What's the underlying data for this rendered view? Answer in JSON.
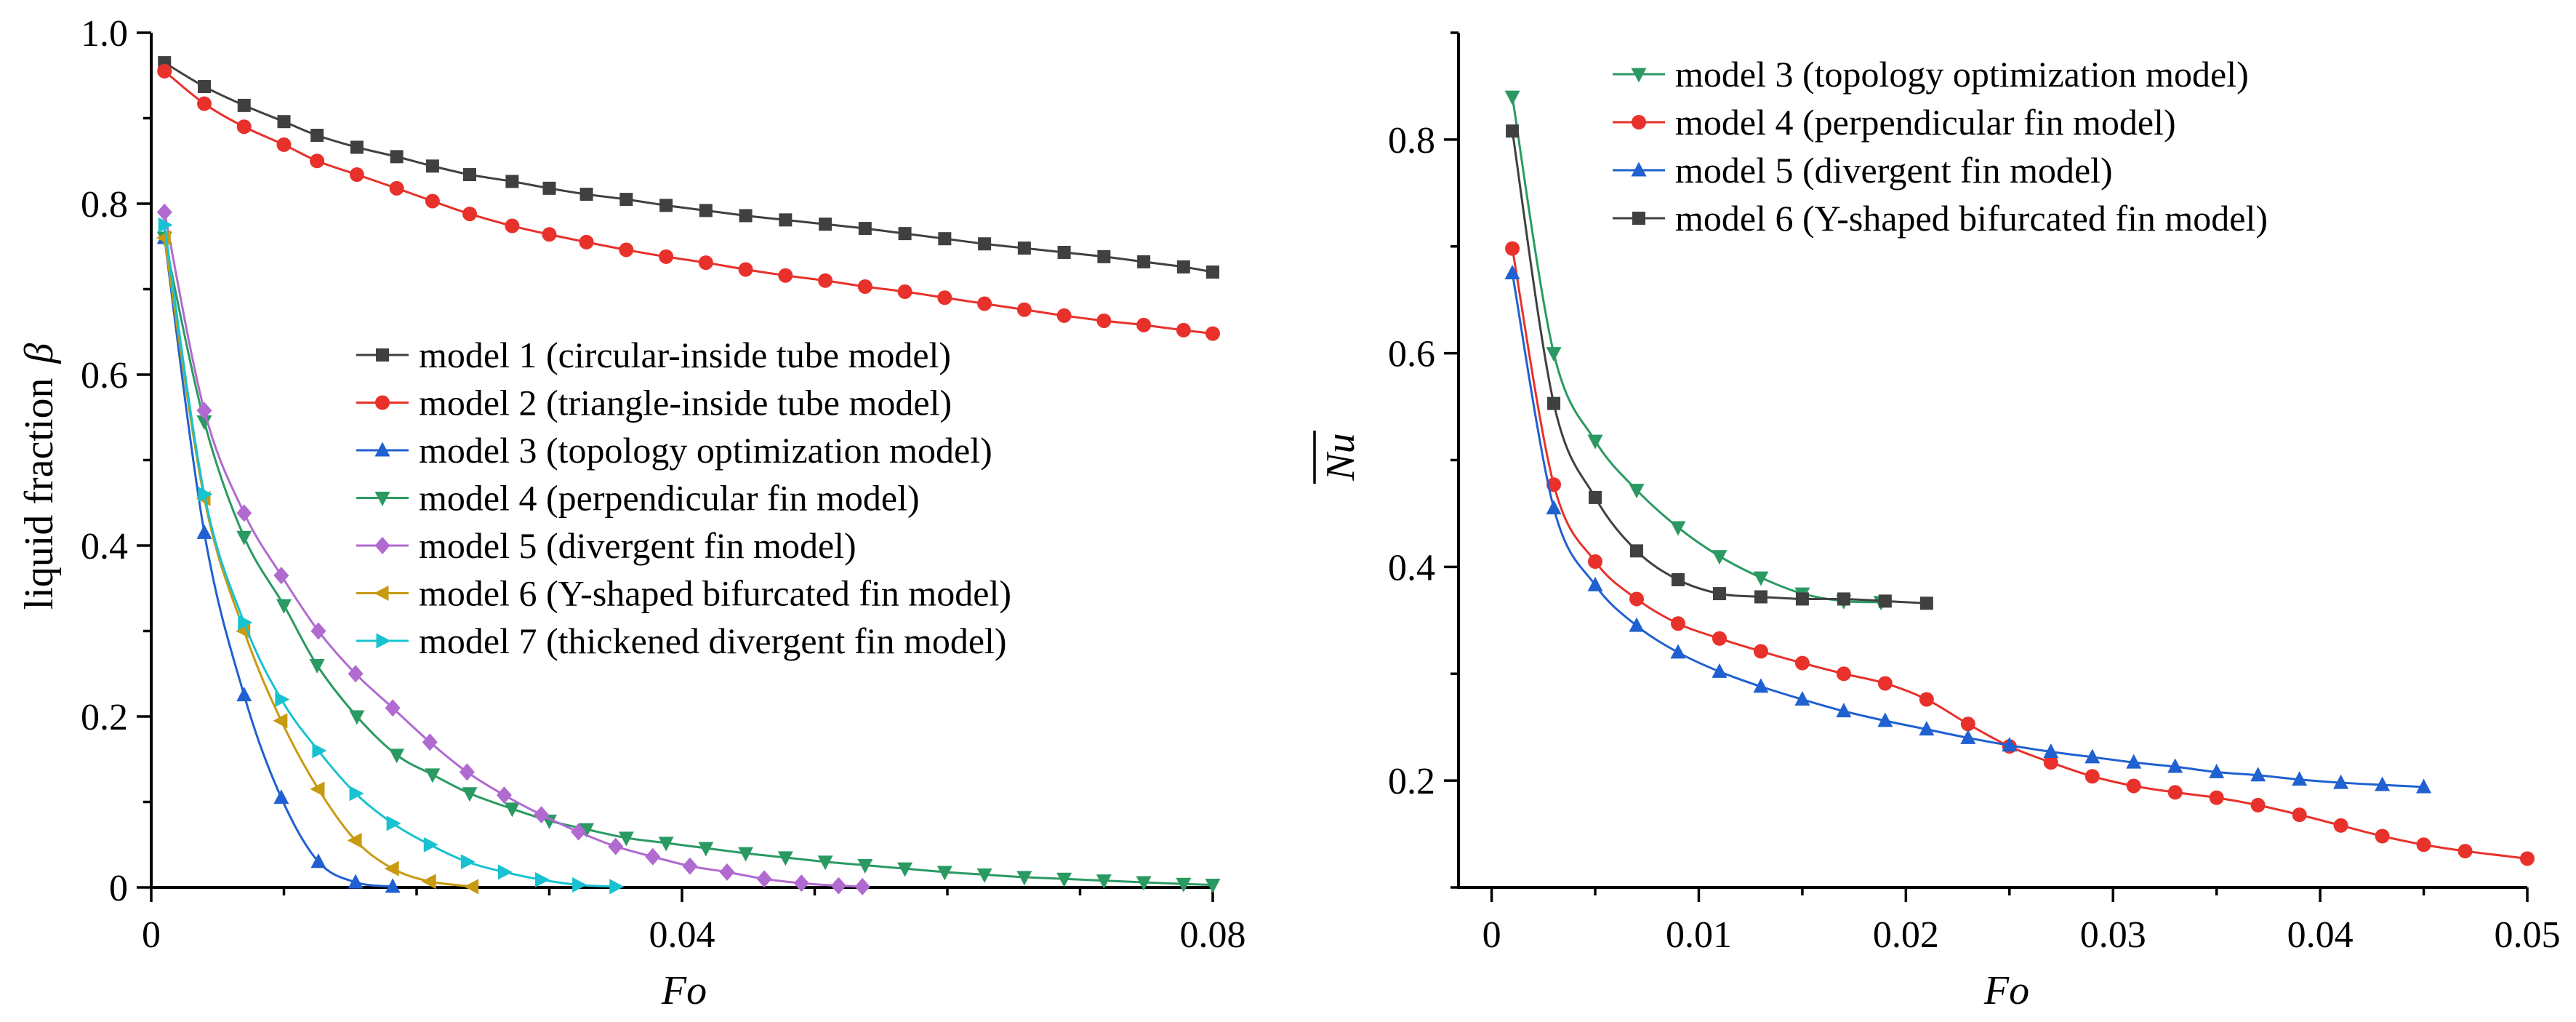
{
  "chart_data": [
    {
      "type": "line",
      "title": "",
      "xlabel": "Fo",
      "ylabel": "liquid fraction",
      "ylabel_symbol": "β",
      "xlim": [
        0,
        0.08
      ],
      "ylim": [
        0,
        1.0
      ],
      "xticks": [
        0,
        0.04,
        0.08
      ],
      "xtick_labels": [
        "0",
        "0.04",
        "0.08"
      ],
      "yticks": [
        0,
        0.2,
        0.4,
        0.6,
        0.8,
        1.0
      ],
      "ytick_labels": [
        "0",
        "0.2",
        "0.4",
        "0.6",
        "0.8",
        "1.0"
      ],
      "grid": false,
      "legend_position": "center-right",
      "series": [
        {
          "name": "model 1 (circular-inside tube model)",
          "color": "#404040",
          "marker": "square",
          "x": [
            0.001,
            0.004,
            0.007,
            0.01,
            0.0125,
            0.0155,
            0.0185,
            0.0212,
            0.024,
            0.0272,
            0.03,
            0.0328,
            0.0358,
            0.0388,
            0.0418,
            0.0448,
            0.0478,
            0.0508,
            0.0538,
            0.0568,
            0.0598,
            0.0628,
            0.0658,
            0.0688,
            0.0718,
            0.0748,
            0.0778,
            0.08
          ],
          "y": [
            0.965,
            0.937,
            0.915,
            0.896,
            0.88,
            0.866,
            0.855,
            0.844,
            0.834,
            0.826,
            0.818,
            0.811,
            0.805,
            0.798,
            0.792,
            0.786,
            0.781,
            0.776,
            0.771,
            0.765,
            0.759,
            0.753,
            0.748,
            0.743,
            0.738,
            0.732,
            0.726,
            0.72
          ]
        },
        {
          "name": "model 2 (triangle-inside tube model)",
          "color": "#e8312b",
          "marker": "circle",
          "x": [
            0.001,
            0.004,
            0.007,
            0.01,
            0.0125,
            0.0155,
            0.0185,
            0.0212,
            0.024,
            0.0272,
            0.03,
            0.0328,
            0.0358,
            0.0388,
            0.0418,
            0.0448,
            0.0478,
            0.0508,
            0.0538,
            0.0568,
            0.0598,
            0.0628,
            0.0658,
            0.0688,
            0.0718,
            0.0748,
            0.0778,
            0.08
          ],
          "y": [
            0.955,
            0.917,
            0.89,
            0.869,
            0.85,
            0.834,
            0.818,
            0.803,
            0.788,
            0.774,
            0.764,
            0.755,
            0.746,
            0.738,
            0.731,
            0.723,
            0.716,
            0.71,
            0.703,
            0.697,
            0.69,
            0.683,
            0.676,
            0.669,
            0.663,
            0.658,
            0.652,
            0.648
          ]
        },
        {
          "name": "model 3 (topology optimization model)",
          "color": "#2060d0",
          "marker": "triangle-up",
          "x": [
            0.001,
            0.004,
            0.007,
            0.0098,
            0.0126,
            0.0154,
            0.0182
          ],
          "y": [
            0.76,
            0.415,
            0.225,
            0.105,
            0.03,
            0.006,
            0.001
          ]
        },
        {
          "name": "model 4 (perpendicular fin model)",
          "color": "#2a9a62",
          "marker": "triangle-down",
          "x": [
            0.001,
            0.004,
            0.007,
            0.01,
            0.0125,
            0.0155,
            0.0185,
            0.0212,
            0.024,
            0.0272,
            0.03,
            0.0328,
            0.0358,
            0.0388,
            0.0418,
            0.0448,
            0.0478,
            0.0508,
            0.0538,
            0.0568,
            0.0598,
            0.0628,
            0.0658,
            0.0688,
            0.0718,
            0.0748,
            0.0778,
            0.08
          ],
          "y": [
            0.76,
            0.545,
            0.41,
            0.33,
            0.26,
            0.2,
            0.155,
            0.132,
            0.11,
            0.092,
            0.078,
            0.068,
            0.058,
            0.052,
            0.046,
            0.04,
            0.035,
            0.03,
            0.026,
            0.022,
            0.018,
            0.015,
            0.012,
            0.01,
            0.008,
            0.006,
            0.004,
            0.003
          ]
        },
        {
          "name": "model 5 (divergent fin model)",
          "color": "#b06ad0",
          "marker": "diamond",
          "x": [
            0.001,
            0.004,
            0.007,
            0.0098,
            0.0126,
            0.0154,
            0.0182,
            0.021,
            0.0238,
            0.0266,
            0.0294,
            0.0322,
            0.035,
            0.0378,
            0.0406,
            0.0434,
            0.0462,
            0.049,
            0.0518,
            0.0536
          ],
          "y": [
            0.79,
            0.558,
            0.438,
            0.365,
            0.3,
            0.25,
            0.21,
            0.17,
            0.135,
            0.108,
            0.085,
            0.065,
            0.048,
            0.036,
            0.025,
            0.018,
            0.01,
            0.005,
            0.002,
            0.001
          ]
        },
        {
          "name": "model 6 (Y-shaped bifurcated fin model)",
          "color": "#c89a10",
          "marker": "triangle-left",
          "x": [
            0.001,
            0.004,
            0.007,
            0.0098,
            0.0126,
            0.0154,
            0.0182,
            0.021,
            0.0242
          ],
          "y": [
            0.76,
            0.455,
            0.3,
            0.195,
            0.115,
            0.055,
            0.022,
            0.007,
            0.001
          ]
        },
        {
          "name": "model 7 (thickened divergent fin model)",
          "color": "#18c2d0",
          "marker": "triangle-right",
          "x": [
            0.001,
            0.004,
            0.007,
            0.0098,
            0.0126,
            0.0154,
            0.0182,
            0.021,
            0.0238,
            0.0266,
            0.0294,
            0.0322,
            0.035
          ],
          "y": [
            0.775,
            0.46,
            0.31,
            0.22,
            0.16,
            0.11,
            0.075,
            0.05,
            0.03,
            0.018,
            0.009,
            0.003,
            0.001
          ]
        }
      ]
    },
    {
      "type": "line",
      "title": "",
      "xlabel": "Fo",
      "ylabel": "Nu",
      "xlim": [
        -0.0016,
        0.05
      ],
      "ylim": [
        0.1,
        0.9
      ],
      "xticks": [
        0,
        0.01,
        0.02,
        0.03,
        0.04,
        0.05
      ],
      "xtick_labels": [
        "0",
        "0.01",
        "0.02",
        "0.03",
        "0.04",
        "0.05"
      ],
      "yticks": [
        0.2,
        0.4,
        0.6,
        0.8
      ],
      "ytick_labels": [
        "0.2",
        "0.4",
        "0.6",
        "0.8"
      ],
      "grid": false,
      "legend_position": "top-right",
      "series": [
        {
          "name": "model 3 (topology optimization model)",
          "color": "#2a9a62",
          "marker": "triangle-down",
          "x": [
            0.001,
            0.003,
            0.005,
            0.007,
            0.009,
            0.011,
            0.013,
            0.015,
            0.017,
            0.0188
          ],
          "y": [
            0.84,
            0.6,
            0.518,
            0.472,
            0.437,
            0.41,
            0.39,
            0.375,
            0.368,
            0.367
          ]
        },
        {
          "name": "model 4 (perpendicular fin model)",
          "color": "#e8312b",
          "marker": "circle",
          "x": [
            0.001,
            0.003,
            0.005,
            0.007,
            0.009,
            0.011,
            0.013,
            0.015,
            0.017,
            0.019,
            0.021,
            0.023,
            0.025,
            0.027,
            0.029,
            0.031,
            0.033,
            0.035,
            0.037,
            0.039,
            0.041,
            0.043,
            0.045,
            0.047,
            0.05
          ],
          "y": [
            0.698,
            0.477,
            0.405,
            0.37,
            0.347,
            0.333,
            0.321,
            0.31,
            0.3,
            0.291,
            0.276,
            0.253,
            0.232,
            0.217,
            0.204,
            0.195,
            0.189,
            0.184,
            0.177,
            0.168,
            0.158,
            0.148,
            0.14,
            0.134,
            0.127
          ]
        },
        {
          "name": "model 5 (divergent fin model)",
          "color": "#2060d0",
          "marker": "triangle-up",
          "x": [
            0.001,
            0.003,
            0.005,
            0.007,
            0.009,
            0.011,
            0.013,
            0.015,
            0.017,
            0.019,
            0.021,
            0.023,
            0.025,
            0.027,
            0.029,
            0.031,
            0.033,
            0.035,
            0.037,
            0.039,
            0.041,
            0.043,
            0.045
          ],
          "y": [
            0.675,
            0.455,
            0.383,
            0.345,
            0.32,
            0.302,
            0.288,
            0.276,
            0.265,
            0.256,
            0.248,
            0.24,
            0.233,
            0.227,
            0.222,
            0.217,
            0.213,
            0.208,
            0.205,
            0.201,
            0.198,
            0.196,
            0.194
          ]
        },
        {
          "name": "model 6 (Y-shaped bifurcated fin model)",
          "color": "#404040",
          "marker": "square",
          "x": [
            0.001,
            0.003,
            0.005,
            0.007,
            0.009,
            0.011,
            0.013,
            0.015,
            0.017,
            0.019,
            0.021
          ],
          "y": [
            0.808,
            0.553,
            0.465,
            0.415,
            0.388,
            0.375,
            0.372,
            0.37,
            0.37,
            0.368,
            0.366
          ]
        }
      ]
    }
  ]
}
